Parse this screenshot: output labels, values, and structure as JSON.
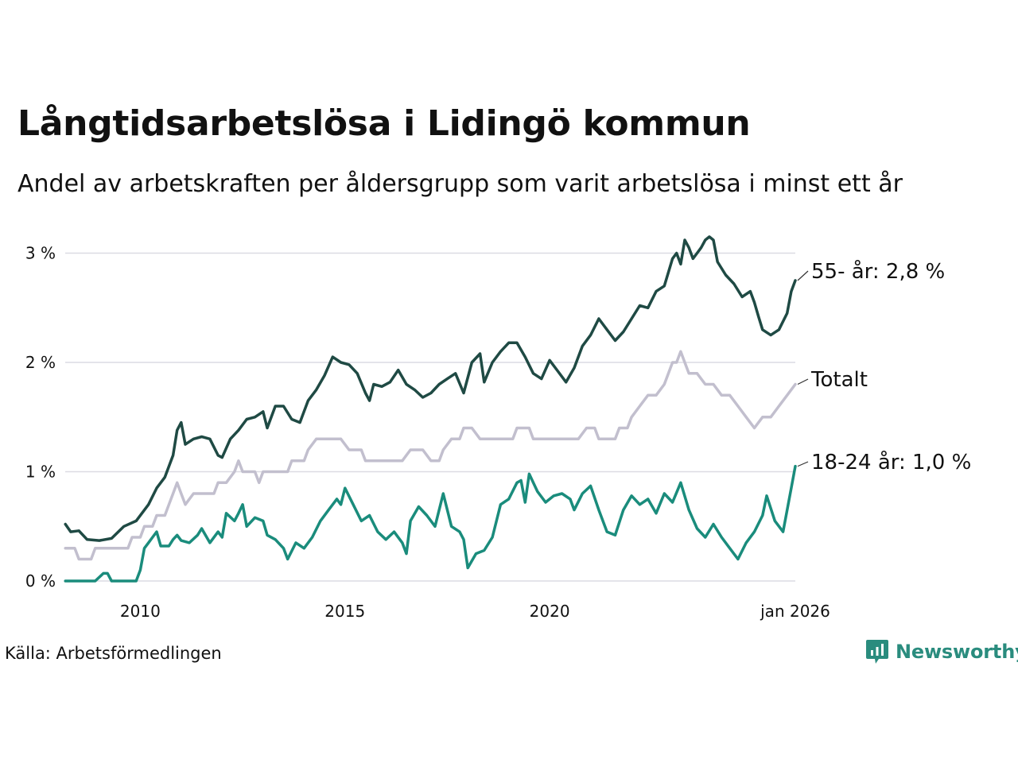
{
  "title": "Långtidsarbetslösa i Lidingö kommun",
  "subtitle": "Andel av arbetskraften per åldersgrupp som varit arbetslösa i minst ett år",
  "source": "Källa: Arbetsförmedlingen",
  "brand": "Newsworthy",
  "colors": {
    "age55": "#1f4a44",
    "total": "#c2bfce",
    "age18": "#1a8c7c",
    "grid": "#dcdbe3",
    "brand": "#2a8c7e"
  },
  "chart_data": {
    "type": "line",
    "title": "Långtidsarbetslösa i Lidingö kommun",
    "ylabel": "",
    "xlabel": "",
    "x_range": [
      2008.1667,
      2026.0
    ],
    "ylim": [
      0,
      3.2
    ],
    "y_ticks": [
      {
        "value": 0,
        "label": "0 %"
      },
      {
        "value": 1,
        "label": "1 %"
      },
      {
        "value": 2,
        "label": "2 %"
      },
      {
        "value": 3,
        "label": "3 %"
      }
    ],
    "x_ticks": [
      {
        "value": 2010,
        "label": "2010"
      },
      {
        "value": 2015,
        "label": "2015"
      },
      {
        "value": 2020,
        "label": "2020"
      },
      {
        "value": 2026.0,
        "label": "jan 2026"
      }
    ],
    "grid": true,
    "series": [
      {
        "key": "age55",
        "name": "55- år",
        "end_label": "55- år: 2,8 %",
        "points": [
          [
            2008.17,
            0.52
          ],
          [
            2008.3,
            0.45
          ],
          [
            2008.5,
            0.46
          ],
          [
            2008.7,
            0.38
          ],
          [
            2009.0,
            0.37
          ],
          [
            2009.3,
            0.39
          ],
          [
            2009.6,
            0.5
          ],
          [
            2009.9,
            0.55
          ],
          [
            2010.2,
            0.7
          ],
          [
            2010.4,
            0.85
          ],
          [
            2010.6,
            0.95
          ],
          [
            2010.8,
            1.15
          ],
          [
            2010.9,
            1.38
          ],
          [
            2011.0,
            1.45
          ],
          [
            2011.1,
            1.25
          ],
          [
            2011.3,
            1.3
          ],
          [
            2011.5,
            1.32
          ],
          [
            2011.7,
            1.3
          ],
          [
            2011.9,
            1.15
          ],
          [
            2012.0,
            1.13
          ],
          [
            2012.2,
            1.3
          ],
          [
            2012.4,
            1.38
          ],
          [
            2012.6,
            1.48
          ],
          [
            2012.8,
            1.5
          ],
          [
            2013.0,
            1.55
          ],
          [
            2013.1,
            1.4
          ],
          [
            2013.3,
            1.6
          ],
          [
            2013.5,
            1.6
          ],
          [
            2013.7,
            1.48
          ],
          [
            2013.9,
            1.45
          ],
          [
            2014.1,
            1.65
          ],
          [
            2014.3,
            1.75
          ],
          [
            2014.5,
            1.88
          ],
          [
            2014.7,
            2.05
          ],
          [
            2014.9,
            2.0
          ],
          [
            2015.1,
            1.98
          ],
          [
            2015.3,
            1.9
          ],
          [
            2015.5,
            1.72
          ],
          [
            2015.6,
            1.65
          ],
          [
            2015.7,
            1.8
          ],
          [
            2015.9,
            1.78
          ],
          [
            2016.1,
            1.82
          ],
          [
            2016.3,
            1.93
          ],
          [
            2016.5,
            1.8
          ],
          [
            2016.7,
            1.75
          ],
          [
            2016.9,
            1.68
          ],
          [
            2017.1,
            1.72
          ],
          [
            2017.3,
            1.8
          ],
          [
            2017.5,
            1.85
          ],
          [
            2017.7,
            1.9
          ],
          [
            2017.9,
            1.72
          ],
          [
            2018.1,
            2.0
          ],
          [
            2018.3,
            2.08
          ],
          [
            2018.4,
            1.82
          ],
          [
            2018.6,
            2.0
          ],
          [
            2018.8,
            2.1
          ],
          [
            2019.0,
            2.18
          ],
          [
            2019.2,
            2.18
          ],
          [
            2019.4,
            2.05
          ],
          [
            2019.6,
            1.9
          ],
          [
            2019.8,
            1.85
          ],
          [
            2020.0,
            2.02
          ],
          [
            2020.2,
            1.92
          ],
          [
            2020.4,
            1.82
          ],
          [
            2020.6,
            1.95
          ],
          [
            2020.8,
            2.15
          ],
          [
            2021.0,
            2.25
          ],
          [
            2021.2,
            2.4
          ],
          [
            2021.4,
            2.3
          ],
          [
            2021.6,
            2.2
          ],
          [
            2021.8,
            2.28
          ],
          [
            2022.0,
            2.4
          ],
          [
            2022.2,
            2.52
          ],
          [
            2022.4,
            2.5
          ],
          [
            2022.6,
            2.65
          ],
          [
            2022.8,
            2.7
          ],
          [
            2023.0,
            2.95
          ],
          [
            2023.1,
            3.0
          ],
          [
            2023.2,
            2.9
          ],
          [
            2023.3,
            3.12
          ],
          [
            2023.4,
            3.05
          ],
          [
            2023.5,
            2.95
          ],
          [
            2023.6,
            3.0
          ],
          [
            2023.7,
            3.05
          ],
          [
            2023.8,
            3.12
          ],
          [
            2023.9,
            3.15
          ],
          [
            2024.0,
            3.12
          ],
          [
            2024.1,
            2.92
          ],
          [
            2024.3,
            2.8
          ],
          [
            2024.5,
            2.72
          ],
          [
            2024.7,
            2.6
          ],
          [
            2024.9,
            2.65
          ],
          [
            2025.0,
            2.55
          ],
          [
            2025.1,
            2.42
          ],
          [
            2025.2,
            2.3
          ],
          [
            2025.4,
            2.25
          ],
          [
            2025.6,
            2.3
          ],
          [
            2025.8,
            2.45
          ],
          [
            2025.9,
            2.65
          ],
          [
            2026.0,
            2.75
          ]
        ]
      },
      {
        "key": "total",
        "name": "Totalt",
        "end_label": "Totalt",
        "points": [
          [
            2008.17,
            0.3
          ],
          [
            2008.4,
            0.3
          ],
          [
            2008.5,
            0.2
          ],
          [
            2008.8,
            0.2
          ],
          [
            2008.9,
            0.3
          ],
          [
            2009.2,
            0.3
          ],
          [
            2009.5,
            0.3
          ],
          [
            2009.7,
            0.3
          ],
          [
            2009.8,
            0.4
          ],
          [
            2010.0,
            0.4
          ],
          [
            2010.1,
            0.5
          ],
          [
            2010.3,
            0.5
          ],
          [
            2010.4,
            0.6
          ],
          [
            2010.6,
            0.6
          ],
          [
            2010.7,
            0.7
          ],
          [
            2010.8,
            0.8
          ],
          [
            2010.9,
            0.9
          ],
          [
            2011.0,
            0.8
          ],
          [
            2011.1,
            0.7
          ],
          [
            2011.3,
            0.8
          ],
          [
            2011.6,
            0.8
          ],
          [
            2011.8,
            0.8
          ],
          [
            2011.9,
            0.9
          ],
          [
            2012.1,
            0.9
          ],
          [
            2012.3,
            1.0
          ],
          [
            2012.4,
            1.1
          ],
          [
            2012.5,
            1.0
          ],
          [
            2012.8,
            1.0
          ],
          [
            2012.9,
            0.9
          ],
          [
            2013.0,
            1.0
          ],
          [
            2013.3,
            1.0
          ],
          [
            2013.6,
            1.0
          ],
          [
            2013.7,
            1.1
          ],
          [
            2014.0,
            1.1
          ],
          [
            2014.1,
            1.2
          ],
          [
            2014.3,
            1.3
          ],
          [
            2014.6,
            1.3
          ],
          [
            2014.9,
            1.3
          ],
          [
            2015.1,
            1.2
          ],
          [
            2015.4,
            1.2
          ],
          [
            2015.5,
            1.1
          ],
          [
            2015.8,
            1.1
          ],
          [
            2016.1,
            1.1
          ],
          [
            2016.4,
            1.1
          ],
          [
            2016.6,
            1.2
          ],
          [
            2016.9,
            1.2
          ],
          [
            2017.1,
            1.1
          ],
          [
            2017.3,
            1.1
          ],
          [
            2017.4,
            1.2
          ],
          [
            2017.6,
            1.3
          ],
          [
            2017.8,
            1.3
          ],
          [
            2017.9,
            1.4
          ],
          [
            2018.1,
            1.4
          ],
          [
            2018.3,
            1.3
          ],
          [
            2018.6,
            1.3
          ],
          [
            2018.9,
            1.3
          ],
          [
            2019.1,
            1.3
          ],
          [
            2019.2,
            1.4
          ],
          [
            2019.5,
            1.4
          ],
          [
            2019.6,
            1.3
          ],
          [
            2019.9,
            1.3
          ],
          [
            2020.2,
            1.3
          ],
          [
            2020.5,
            1.3
          ],
          [
            2020.7,
            1.3
          ],
          [
            2020.9,
            1.4
          ],
          [
            2021.1,
            1.4
          ],
          [
            2021.2,
            1.3
          ],
          [
            2021.4,
            1.3
          ],
          [
            2021.6,
            1.3
          ],
          [
            2021.7,
            1.4
          ],
          [
            2021.9,
            1.4
          ],
          [
            2022.0,
            1.5
          ],
          [
            2022.2,
            1.6
          ],
          [
            2022.4,
            1.7
          ],
          [
            2022.6,
            1.7
          ],
          [
            2022.8,
            1.8
          ],
          [
            2023.0,
            2.0
          ],
          [
            2023.1,
            2.0
          ],
          [
            2023.2,
            2.1
          ],
          [
            2023.3,
            2.0
          ],
          [
            2023.4,
            1.9
          ],
          [
            2023.6,
            1.9
          ],
          [
            2023.8,
            1.8
          ],
          [
            2024.0,
            1.8
          ],
          [
            2024.2,
            1.7
          ],
          [
            2024.4,
            1.7
          ],
          [
            2024.6,
            1.6
          ],
          [
            2024.8,
            1.5
          ],
          [
            2025.0,
            1.4
          ],
          [
            2025.2,
            1.5
          ],
          [
            2025.4,
            1.5
          ],
          [
            2025.6,
            1.6
          ],
          [
            2025.8,
            1.7
          ],
          [
            2026.0,
            1.8
          ]
        ]
      },
      {
        "key": "age18",
        "name": "18-24 år",
        "end_label": "18-24 år: 1,0 %",
        "points": [
          [
            2008.17,
            0.0
          ],
          [
            2008.5,
            0.0
          ],
          [
            2008.9,
            0.0
          ],
          [
            2009.1,
            0.07
          ],
          [
            2009.2,
            0.07
          ],
          [
            2009.3,
            0.0
          ],
          [
            2009.6,
            0.0
          ],
          [
            2009.9,
            0.0
          ],
          [
            2010.0,
            0.1
          ],
          [
            2010.1,
            0.3
          ],
          [
            2010.2,
            0.35
          ],
          [
            2010.3,
            0.4
          ],
          [
            2010.4,
            0.45
          ],
          [
            2010.5,
            0.32
          ],
          [
            2010.7,
            0.32
          ],
          [
            2010.8,
            0.38
          ],
          [
            2010.9,
            0.42
          ],
          [
            2011.0,
            0.37
          ],
          [
            2011.2,
            0.35
          ],
          [
            2011.4,
            0.42
          ],
          [
            2011.5,
            0.48
          ],
          [
            2011.7,
            0.35
          ],
          [
            2011.9,
            0.45
          ],
          [
            2012.0,
            0.4
          ],
          [
            2012.1,
            0.62
          ],
          [
            2012.3,
            0.55
          ],
          [
            2012.4,
            0.62
          ],
          [
            2012.5,
            0.7
          ],
          [
            2012.6,
            0.5
          ],
          [
            2012.8,
            0.58
          ],
          [
            2013.0,
            0.55
          ],
          [
            2013.1,
            0.42
          ],
          [
            2013.3,
            0.38
          ],
          [
            2013.5,
            0.3
          ],
          [
            2013.6,
            0.2
          ],
          [
            2013.8,
            0.35
          ],
          [
            2014.0,
            0.3
          ],
          [
            2014.2,
            0.4
          ],
          [
            2014.4,
            0.55
          ],
          [
            2014.6,
            0.65
          ],
          [
            2014.8,
            0.75
          ],
          [
            2014.9,
            0.7
          ],
          [
            2015.0,
            0.85
          ],
          [
            2015.2,
            0.7
          ],
          [
            2015.4,
            0.55
          ],
          [
            2015.6,
            0.6
          ],
          [
            2015.8,
            0.45
          ],
          [
            2016.0,
            0.38
          ],
          [
            2016.2,
            0.45
          ],
          [
            2016.4,
            0.35
          ],
          [
            2016.5,
            0.25
          ],
          [
            2016.6,
            0.55
          ],
          [
            2016.8,
            0.68
          ],
          [
            2017.0,
            0.6
          ],
          [
            2017.2,
            0.5
          ],
          [
            2017.4,
            0.8
          ],
          [
            2017.6,
            0.5
          ],
          [
            2017.8,
            0.45
          ],
          [
            2017.9,
            0.38
          ],
          [
            2018.0,
            0.12
          ],
          [
            2018.2,
            0.25
          ],
          [
            2018.4,
            0.28
          ],
          [
            2018.6,
            0.4
          ],
          [
            2018.8,
            0.7
          ],
          [
            2019.0,
            0.75
          ],
          [
            2019.2,
            0.9
          ],
          [
            2019.3,
            0.92
          ],
          [
            2019.4,
            0.72
          ],
          [
            2019.5,
            0.98
          ],
          [
            2019.7,
            0.82
          ],
          [
            2019.9,
            0.72
          ],
          [
            2020.1,
            0.78
          ],
          [
            2020.3,
            0.8
          ],
          [
            2020.5,
            0.75
          ],
          [
            2020.6,
            0.65
          ],
          [
            2020.8,
            0.8
          ],
          [
            2021.0,
            0.87
          ],
          [
            2021.2,
            0.65
          ],
          [
            2021.4,
            0.45
          ],
          [
            2021.6,
            0.42
          ],
          [
            2021.8,
            0.65
          ],
          [
            2022.0,
            0.78
          ],
          [
            2022.2,
            0.7
          ],
          [
            2022.4,
            0.75
          ],
          [
            2022.6,
            0.62
          ],
          [
            2022.8,
            0.8
          ],
          [
            2023.0,
            0.72
          ],
          [
            2023.2,
            0.9
          ],
          [
            2023.4,
            0.65
          ],
          [
            2023.6,
            0.48
          ],
          [
            2023.8,
            0.4
          ],
          [
            2024.0,
            0.52
          ],
          [
            2024.2,
            0.4
          ],
          [
            2024.4,
            0.3
          ],
          [
            2024.6,
            0.2
          ],
          [
            2024.8,
            0.35
          ],
          [
            2025.0,
            0.45
          ],
          [
            2025.2,
            0.6
          ],
          [
            2025.3,
            0.78
          ],
          [
            2025.5,
            0.55
          ],
          [
            2025.7,
            0.45
          ],
          [
            2025.9,
            0.85
          ],
          [
            2026.0,
            1.05
          ]
        ]
      }
    ]
  }
}
